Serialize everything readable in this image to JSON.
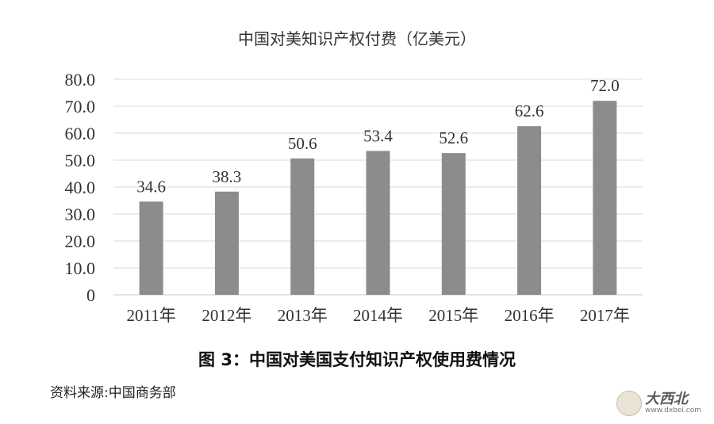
{
  "chart_data": {
    "type": "bar",
    "title": "中国对美知识产权付费（亿美元）",
    "categories": [
      "2011年",
      "2012年",
      "2013年",
      "2014年",
      "2015年",
      "2016年",
      "2017年"
    ],
    "values": [
      34.6,
      38.3,
      50.6,
      53.4,
      52.6,
      62.6,
      72.0
    ],
    "data_labels": [
      "34.6",
      "38.3",
      "50.6",
      "53.4",
      "52.6",
      "62.6",
      "72.0"
    ],
    "ylim": [
      0,
      80
    ],
    "yticks": [
      0,
      10,
      20,
      30,
      40,
      50,
      60,
      70,
      80
    ],
    "ytick_labels": [
      "0",
      "10.0",
      "20.0",
      "30.0",
      "40.0",
      "50.0",
      "60.0",
      "70.0",
      "80.0"
    ],
    "xlabel": "",
    "ylabel": "",
    "grid": true,
    "bar_color": "#8c8c8c"
  },
  "caption": "图 3：中国对美国支付知识产权使用费情况",
  "source": "资料来源:中国商务部",
  "watermark": {
    "logo": "大西北",
    "url": "www.dxbei.com",
    "icon": "emblem-icon"
  }
}
